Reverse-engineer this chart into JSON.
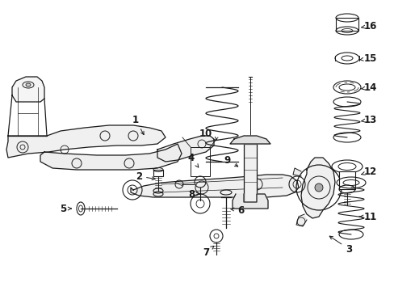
{
  "bg_color": "#ffffff",
  "fig_width": 4.89,
  "fig_height": 3.6,
  "dpi": 100,
  "line_color": "#1a1a1a",
  "lw_main": 0.9,
  "lw_thin": 0.5,
  "lw_thick": 1.2
}
